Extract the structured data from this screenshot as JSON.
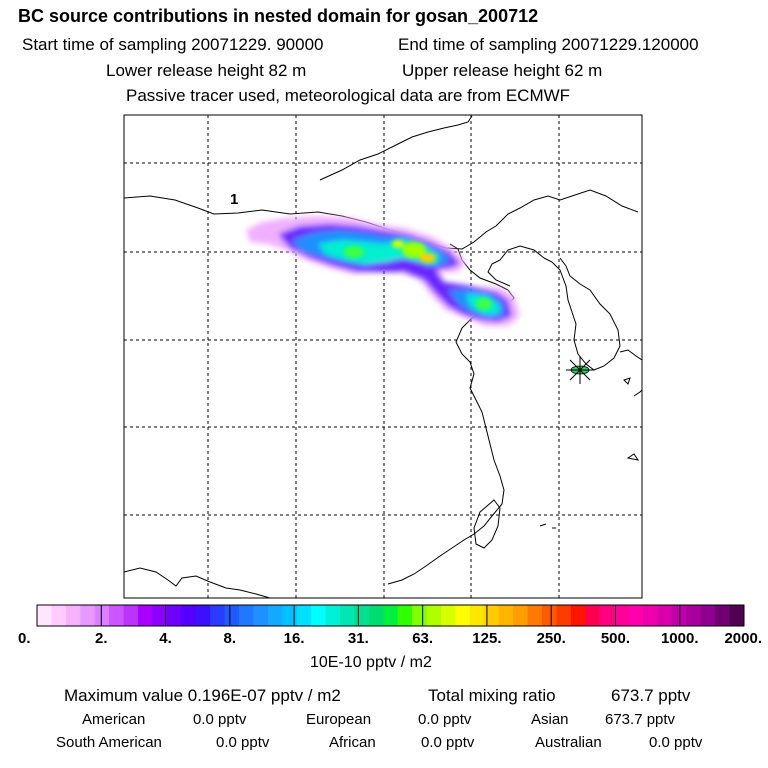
{
  "header": {
    "title": "BC  source contributions in nested domain for gosan_200712",
    "start_label": "Start time of sampling 20071229. 90000",
    "end_label": "End time of sampling 20071229.120000",
    "lower_label": "Lower release height   82 m",
    "upper_label": "Upper release height   62 m",
    "note": "Passive tracer used, meteorological data are from ECMWF"
  },
  "map": {
    "label_1": "1",
    "receptor": "gosan-receptor-star"
  },
  "colorbar": {
    "tick_labels": [
      "0.",
      "2.",
      "4.",
      "8.",
      "16.",
      "31.",
      "63.",
      "125.",
      "250.",
      "500.",
      "1000.",
      "2000."
    ],
    "unit_label": "10E-10 pptv / m2",
    "colors": [
      "#ffe6ff",
      "#ffccff",
      "#f5b3ff",
      "#e699ff",
      "#d97fff",
      "#cc55ff",
      "#bb33ff",
      "#aa00ff",
      "#8c00ff",
      "#6e00ff",
      "#5500ff",
      "#3b10ff",
      "#2a3cff",
      "#1e5cff",
      "#1f78ff",
      "#1e90ff",
      "#14a8ff",
      "#00c0ff",
      "#00e0ff",
      "#00ffff",
      "#00f0d8",
      "#00e6b4",
      "#00e090",
      "#00dd70",
      "#00ee40",
      "#30ff00",
      "#80ff00",
      "#b0ff00",
      "#d8ff00",
      "#ffff00",
      "#ffe600",
      "#ffcc00",
      "#ffb400",
      "#ff9c00",
      "#ff7a00",
      "#ff5a00",
      "#ff3c00",
      "#ff1400",
      "#ff0050",
      "#ff0080",
      "#ff0099",
      "#ff00aa",
      "#ee00aa",
      "#d800aa",
      "#c000a8",
      "#a8009e",
      "#900090",
      "#700070",
      "#500050"
    ]
  },
  "summary": {
    "max_label": "Maximum value  0.196E-07 pptv / m2",
    "total_label": "Total mixing ratio",
    "total_value": "673.7 pptv",
    "american_label": "American",
    "american_value": "0.0 pptv",
    "european_label": "European",
    "european_value": "0.0 pptv",
    "asian_label": "Asian",
    "asian_value": "673.7 pptv",
    "south_american_label": "South American",
    "south_american_value": "0.0 pptv",
    "african_label": "African",
    "african_value": "0.0 pptv",
    "australian_label": "Australian",
    "australian_value": "0.0 pptv"
  }
}
